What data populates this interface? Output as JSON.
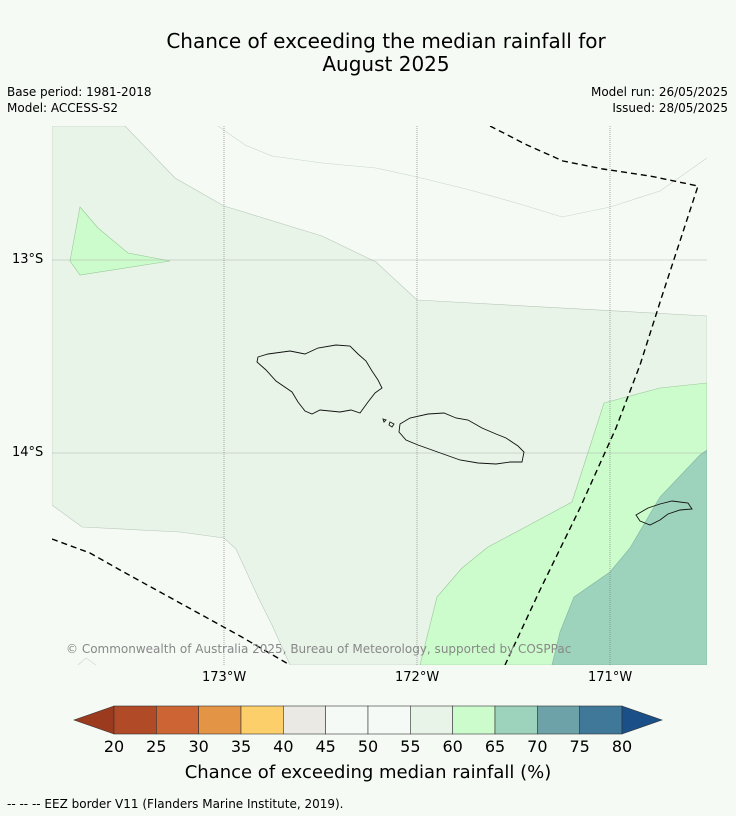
{
  "title_line1": "Chance of exceeding the median rainfall for",
  "title_line2": "August 2025",
  "meta_left": {
    "base_period": "Base period: 1981-2018",
    "model": "Model: ACCESS-S2"
  },
  "meta_right": {
    "model_run": "Model run: 26/05/2025",
    "issued": "Issued: 28/05/2025"
  },
  "lat_labels": [
    "13°S",
    "14°S"
  ],
  "lon_labels": [
    "173°W",
    "172°W",
    "171°W"
  ],
  "copyright": "© Commonwealth of Australia 2025, Bureau of Meteorology, supported by COSPPac",
  "colorbar": {
    "ticks": [
      "20",
      "25",
      "30",
      "35",
      "40",
      "45",
      "50",
      "55",
      "60",
      "65",
      "70",
      "75",
      "80"
    ],
    "colors": [
      "#9c3a1e",
      "#b14a26",
      "#cc6533",
      "#e39444",
      "#fdcf6a",
      "#ebe9e4",
      "#f6faf6",
      "#f6faf6",
      "#e8f4e8",
      "#ccfccc",
      "#9dd3bc",
      "#6da3a8",
      "#3f7898",
      "#1a4f87"
    ],
    "title": "Chance of exceeding median rainfall (%)"
  },
  "footer": "--  --  -- EEZ border V11 (Flanders Marine Institute, 2019)."
}
